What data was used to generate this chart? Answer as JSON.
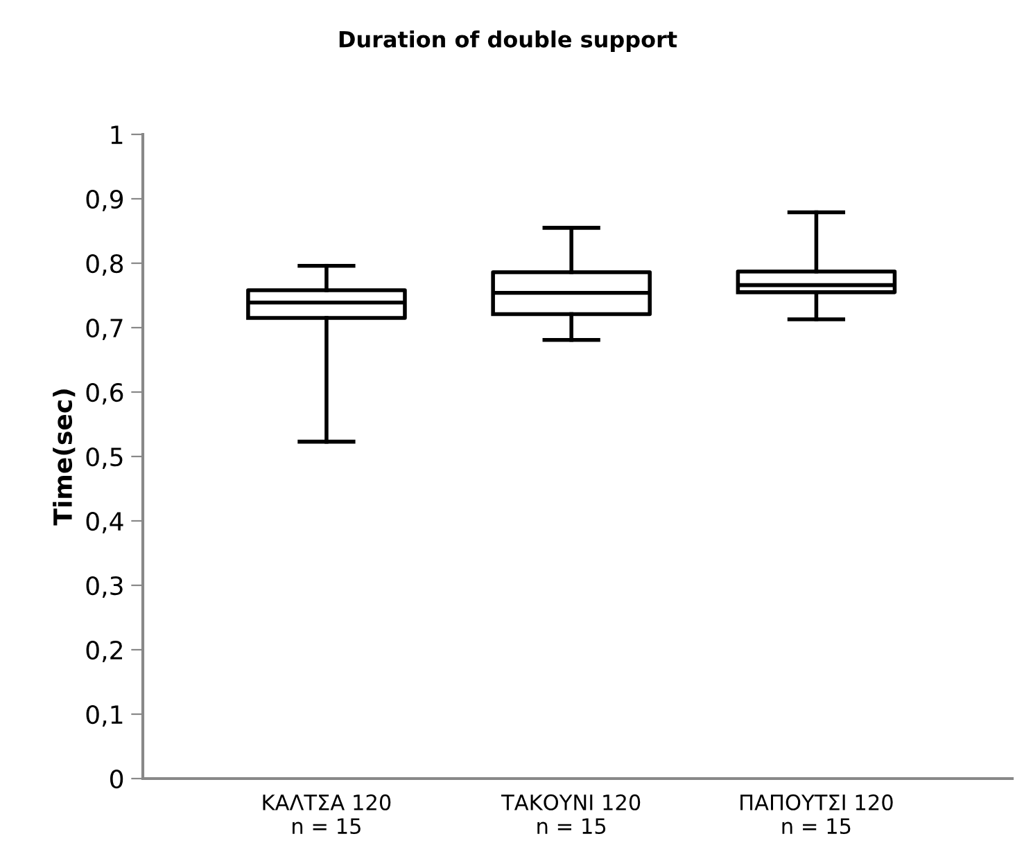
{
  "chart_data": {
    "type": "box",
    "title": "Duration of double support",
    "ylabel": "Time(sec)",
    "categories": [
      "ΚΑΛΤΣΑ 120\nn = 15",
      "ΤΑΚΟΥΝΙ 120\nn = 15",
      "ΠΑΠΟΥΤΣΙ 120\nn = 15"
    ],
    "boxes": [
      {
        "low": 0.523,
        "q1": 0.715,
        "median": 0.739,
        "q3": 0.758,
        "high": 0.796
      },
      {
        "low": 0.681,
        "q1": 0.721,
        "median": 0.754,
        "q3": 0.786,
        "high": 0.855
      },
      {
        "low": 0.713,
        "q1": 0.755,
        "median": 0.766,
        "q3": 0.787,
        "high": 0.879
      }
    ],
    "ylim": [
      0,
      1
    ],
    "yticks": [
      0,
      {
        "value": 0.1,
        "label": "0,1"
      },
      {
        "value": 0.2,
        "label": "0,2"
      },
      {
        "value": 0.3,
        "label": "0,3"
      },
      {
        "value": 0.4,
        "label": "0,4"
      },
      {
        "value": 0.5,
        "label": "0,5"
      },
      {
        "value": 0.6,
        "label": "0,6"
      },
      {
        "value": 0.7,
        "label": "0,7"
      },
      {
        "value": 0.8,
        "label": "0,8"
      },
      {
        "value": 0.9,
        "label": "0,9"
      },
      1
    ],
    "grid": false,
    "legend": false
  }
}
